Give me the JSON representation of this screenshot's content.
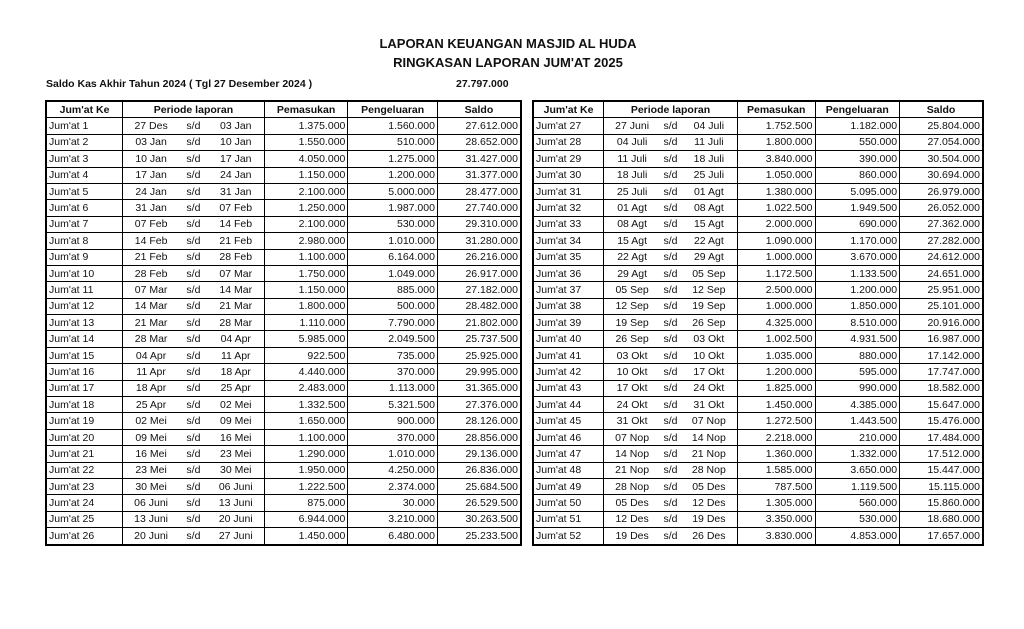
{
  "title": "LAPORAN KEUANGAN MASJID AL HUDA",
  "subtitle": "RINGKASAN LAPORAN JUM'AT 2025",
  "opening_balance": {
    "label": "Saldo Kas Akhir Tahun 2024 ( Tgl 27 Desember 2024 )",
    "value": "27.797.000"
  },
  "headers": [
    "Jum'at Ke",
    "Periode laporan",
    "Pemasukan",
    "Pengeluaran",
    "Saldo"
  ],
  "period_separator": "s/d",
  "left_rows": [
    [
      "Jum'at 1",
      "27 Des",
      "03 Jan",
      "1.375.000",
      "1.560.000",
      "27.612.000"
    ],
    [
      "Jum'at 2",
      "03 Jan",
      "10 Jan",
      "1.550.000",
      "510.000",
      "28.652.000"
    ],
    [
      "Jum'at 3",
      "10 Jan",
      "17 Jan",
      "4.050.000",
      "1.275.000",
      "31.427.000"
    ],
    [
      "Jum'at 4",
      "17 Jan",
      "24 Jan",
      "1.150.000",
      "1.200.000",
      "31.377.000"
    ],
    [
      "Jum'at 5",
      "24 Jan",
      "31 Jan",
      "2.100.000",
      "5.000.000",
      "28.477.000"
    ],
    [
      "Jum'at 6",
      "31 Jan",
      "07 Feb",
      "1.250.000",
      "1.987.000",
      "27.740.000"
    ],
    [
      "Jum'at 7",
      "07 Feb",
      "14 Feb",
      "2.100.000",
      "530.000",
      "29.310.000"
    ],
    [
      "Jum'at 8",
      "14 Feb",
      "21 Feb",
      "2.980.000",
      "1.010.000",
      "31.280.000"
    ],
    [
      "Jum'at 9",
      "21 Feb",
      "28 Feb",
      "1.100.000",
      "6.164.000",
      "26.216.000"
    ],
    [
      "Jum'at 10",
      "28 Feb",
      "07 Mar",
      "1.750.000",
      "1.049.000",
      "26.917.000"
    ],
    [
      "Jum'at 11",
      "07 Mar",
      "14 Mar",
      "1.150.000",
      "885.000",
      "27.182.000"
    ],
    [
      "Jum'at 12",
      "14 Mar",
      "21 Mar",
      "1.800.000",
      "500.000",
      "28.482.000"
    ],
    [
      "Jum'at 13",
      "21 Mar",
      "28 Mar",
      "1.110.000",
      "7.790.000",
      "21.802.000"
    ],
    [
      "Jum'at 14",
      "28 Mar",
      "04 Apr",
      "5.985.000",
      "2.049.500",
      "25.737.500"
    ],
    [
      "Jum'at 15",
      "04 Apr",
      "11 Apr",
      "922.500",
      "735.000",
      "25.925.000"
    ],
    [
      "Jum'at 16",
      "11 Apr",
      "18 Apr",
      "4.440.000",
      "370.000",
      "29.995.000"
    ],
    [
      "Jum'at 17",
      "18 Apr",
      "25 Apr",
      "2.483.000",
      "1.113.000",
      "31.365.000"
    ],
    [
      "Jum'at 18",
      "25 Apr",
      "02 Mei",
      "1.332.500",
      "5.321.500",
      "27.376.000"
    ],
    [
      "Jum'at 19",
      "02 Mei",
      "09 Mei",
      "1.650.000",
      "900.000",
      "28.126.000"
    ],
    [
      "Jum'at 20",
      "09 Mei",
      "16 Mei",
      "1.100.000",
      "370.000",
      "28.856.000"
    ],
    [
      "Jum'at 21",
      "16 Mei",
      "23 Mei",
      "1.290.000",
      "1.010.000",
      "29.136.000"
    ],
    [
      "Jum'at 22",
      "23 Mei",
      "30 Mei",
      "1.950.000",
      "4.250.000",
      "26.836.000"
    ],
    [
      "Jum'at 23",
      "30 Mei",
      "06 Juni",
      "1.222.500",
      "2.374.000",
      "25.684.500"
    ],
    [
      "Jum'at 24",
      "06 Juni",
      "13 Juni",
      "875.000",
      "30.000",
      "26.529.500"
    ],
    [
      "Jum'at 25",
      "13 Juni",
      "20 Juni",
      "6.944.000",
      "3.210.000",
      "30.263.500"
    ],
    [
      "Jum'at 26",
      "20 Juni",
      "27 Juni",
      "1.450.000",
      "6.480.000",
      "25.233.500"
    ]
  ],
  "right_rows": [
    [
      "Jum'at 27",
      "27 Juni",
      "04 Juli",
      "1.752.500",
      "1.182.000",
      "25.804.000"
    ],
    [
      "Jum'at 28",
      "04 Juli",
      "11 Juli",
      "1.800.000",
      "550.000",
      "27.054.000"
    ],
    [
      "Jum'at 29",
      "11 Juli",
      "18 Juli",
      "3.840.000",
      "390.000",
      "30.504.000"
    ],
    [
      "Jum'at 30",
      "18 Juli",
      "25 Juli",
      "1.050.000",
      "860.000",
      "30.694.000"
    ],
    [
      "Jum'at 31",
      "25 Juli",
      "01 Agt",
      "1.380.000",
      "5.095.000",
      "26.979.000"
    ],
    [
      "Jum'at 32",
      "01 Agt",
      "08 Agt",
      "1.022.500",
      "1.949.500",
      "26.052.000"
    ],
    [
      "Jum'at 33",
      "08 Agt",
      "15 Agt",
      "2.000.000",
      "690.000",
      "27.362.000"
    ],
    [
      "Jum'at 34",
      "15 Agt",
      "22 Agt",
      "1.090.000",
      "1.170.000",
      "27.282.000"
    ],
    [
      "Jum'at 35",
      "22 Agt",
      "29 Agt",
      "1.000.000",
      "3.670.000",
      "24.612.000"
    ],
    [
      "Jum'at 36",
      "29 Agt",
      "05 Sep",
      "1.172.500",
      "1.133.500",
      "24.651.000"
    ],
    [
      "Jum'at 37",
      "05 Sep",
      "12 Sep",
      "2.500.000",
      "1.200.000",
      "25.951.000"
    ],
    [
      "Jum'at 38",
      "12 Sep",
      "19 Sep",
      "1.000.000",
      "1.850.000",
      "25.101.000"
    ],
    [
      "Jum'at 39",
      "19 Sep",
      "26 Sep",
      "4.325.000",
      "8.510.000",
      "20.916.000"
    ],
    [
      "Jum'at 40",
      "26 Sep",
      "03 Okt",
      "1.002.500",
      "4.931.500",
      "16.987.000"
    ],
    [
      "Jum'at 41",
      "03 Okt",
      "10 Okt",
      "1.035.000",
      "880.000",
      "17.142.000"
    ],
    [
      "Jum'at 42",
      "10 Okt",
      "17 Okt",
      "1.200.000",
      "595.000",
      "17.747.000"
    ],
    [
      "Jum'at 43",
      "17 Okt",
      "24 Okt",
      "1.825.000",
      "990.000",
      "18.582.000"
    ],
    [
      "Jum'at 44",
      "24 Okt",
      "31 Okt",
      "1.450.000",
      "4.385.000",
      "15.647.000"
    ],
    [
      "Jum'at 45",
      "31 Okt",
      "07 Nop",
      "1.272.500",
      "1.443.500",
      "15.476.000"
    ],
    [
      "Jum'at 46",
      "07 Nop",
      "14 Nop",
      "2.218.000",
      "210.000",
      "17.484.000"
    ],
    [
      "Jum'at 47",
      "14 Nop",
      "21 Nop",
      "1.360.000",
      "1.332.000",
      "17.512.000"
    ],
    [
      "Jum'at 48",
      "21 Nop",
      "28 Nop",
      "1.585.000",
      "3.650.000",
      "15.447.000"
    ],
    [
      "Jum'at 49",
      "28 Nop",
      "05 Des",
      "787.500",
      "1.119.500",
      "15.115.000"
    ],
    [
      "Jum'at 50",
      "05 Des",
      "12 Des",
      "1.305.000",
      "560.000",
      "15.860.000"
    ],
    [
      "Jum'at 51",
      "12 Des",
      "19 Des",
      "3.350.000",
      "530.000",
      "18.680.000"
    ],
    [
      "Jum'at 52",
      "19 Des",
      "26 Des",
      "3.830.000",
      "4.853.000",
      "17.657.000"
    ]
  ]
}
